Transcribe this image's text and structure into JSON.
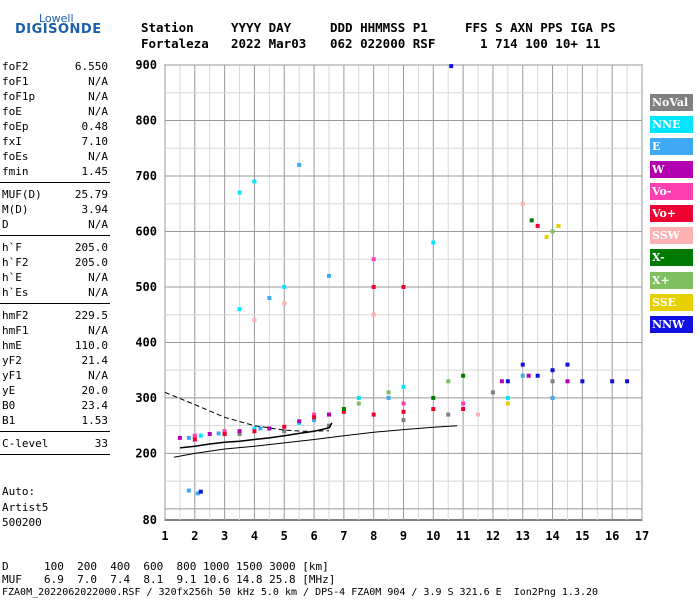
{
  "logo": {
    "top": "Lowell",
    "bottom": "DIGISONDE"
  },
  "header": {
    "labels": [
      "Station",
      "YYYY DAY",
      "DDD HHMMSS P1",
      "FFS S AXN PPS IGA PS"
    ],
    "values": [
      "Fortaleza",
      "2022 Mar03",
      "062 022000 RSF",
      "  1 714 100 10+ 11"
    ]
  },
  "parameters": [
    {
      "name": "foF2",
      "value": "6.550"
    },
    {
      "name": "foF1",
      "value": "N/A"
    },
    {
      "name": "foF1p",
      "value": "N/A"
    },
    {
      "name": "foE",
      "value": "N/A"
    },
    {
      "name": "foEp",
      "value": "0.48"
    },
    {
      "name": "fxI",
      "value": "7.10"
    },
    {
      "name": "foEs",
      "value": "N/A"
    },
    {
      "name": "fmin",
      "value": "1.45"
    },
    {
      "name": "MUF(D)",
      "value": "25.79"
    },
    {
      "name": "M(D)",
      "value": "3.94"
    },
    {
      "name": "D",
      "value": "N/A"
    },
    {
      "name": "h`F",
      "value": "205.0"
    },
    {
      "name": "h`F2",
      "value": "205.0"
    },
    {
      "name": "h`E",
      "value": "N/A"
    },
    {
      "name": "h`Es",
      "value": "N/A"
    },
    {
      "name": "hmF2",
      "value": "229.5"
    },
    {
      "name": "hmF1",
      "value": "N/A"
    },
    {
      "name": "hmE",
      "value": "110.0"
    },
    {
      "name": "yF2",
      "value": "21.4"
    },
    {
      "name": "yF1",
      "value": "N/A"
    },
    {
      "name": "yE",
      "value": "20.0"
    },
    {
      "name": "B0",
      "value": "23.4"
    },
    {
      "name": "B1",
      "value": "1.53"
    },
    {
      "name": "C-level",
      "value": "33"
    }
  ],
  "auto": {
    "line1": "Auto:",
    "line2": "Artist5",
    "line3": "500200"
  },
  "legend": [
    {
      "label": "NoVal",
      "color": "#808080"
    },
    {
      "label": "NNE",
      "color": "#00e6ff"
    },
    {
      "label": "E",
      "color": "#3fa9f5"
    },
    {
      "label": "W",
      "color": "#b000b0"
    },
    {
      "label": "Vo-",
      "color": "#ff3faf"
    },
    {
      "label": "Vo+",
      "color": "#ee0030"
    },
    {
      "label": "SSW",
      "color": "#ffb0b0"
    },
    {
      "label": "X-",
      "color": "#007a00"
    },
    {
      "label": "X+",
      "color": "#7fbf5f"
    },
    {
      "label": "SSE",
      "color": "#e6d000"
    },
    {
      "label": "NNW",
      "color": "#1010e0"
    }
  ],
  "chart_data": {
    "type": "scatter",
    "title": "",
    "xlabel": "",
    "ylabel": "",
    "xlim": [
      1,
      17
    ],
    "ylim": [
      80,
      900
    ],
    "x_ticks": [
      1,
      2,
      3,
      4,
      5,
      6,
      7,
      8,
      9,
      10,
      11,
      12,
      13,
      14,
      15,
      16,
      17
    ],
    "y_ticks": [
      80,
      200,
      300,
      400,
      500,
      600,
      700,
      800,
      900
    ],
    "grid": true,
    "series": [
      {
        "name": "NoVal",
        "points": [
          [
            2.0,
            230
          ],
          [
            3.5,
            235
          ],
          [
            5.0,
            240
          ],
          [
            6.5,
            250
          ],
          [
            9.0,
            260
          ],
          [
            10.5,
            270
          ],
          [
            12.0,
            310
          ],
          [
            14.0,
            330
          ]
        ]
      },
      {
        "name": "NNE",
        "points": [
          [
            2.2,
            232
          ],
          [
            3.0,
            238
          ],
          [
            4.0,
            245
          ],
          [
            5.5,
            255
          ],
          [
            7.5,
            300
          ],
          [
            3.5,
            460
          ],
          [
            5.0,
            500
          ],
          [
            4.0,
            690
          ],
          [
            3.5,
            670
          ],
          [
            9.0,
            320
          ],
          [
            10.0,
            580
          ],
          [
            12.5,
            300
          ]
        ]
      },
      {
        "name": "E",
        "points": [
          [
            1.8,
            228
          ],
          [
            2.8,
            236
          ],
          [
            4.2,
            245
          ],
          [
            6.0,
            260
          ],
          [
            8.5,
            300
          ],
          [
            4.5,
            480
          ],
          [
            6.5,
            520
          ],
          [
            5.5,
            720
          ],
          [
            2.1,
            128
          ],
          [
            1.8,
            133
          ],
          [
            13.0,
            340
          ],
          [
            14.0,
            300
          ]
        ]
      },
      {
        "name": "W",
        "points": [
          [
            1.5,
            228
          ],
          [
            2.5,
            235
          ],
          [
            3.5,
            240
          ],
          [
            4.5,
            245
          ],
          [
            5.5,
            258
          ],
          [
            6.5,
            270
          ],
          [
            12.3,
            330
          ],
          [
            13.2,
            340
          ],
          [
            14.5,
            330
          ]
        ]
      },
      {
        "name": "Vo-",
        "points": [
          [
            2.0,
            232
          ],
          [
            3.0,
            240
          ],
          [
            6.0,
            270
          ],
          [
            9.0,
            290
          ],
          [
            11.0,
            290
          ],
          [
            8.0,
            550
          ]
        ]
      },
      {
        "name": "Vo+",
        "points": [
          [
            2.0,
            225
          ],
          [
            3.0,
            235
          ],
          [
            4.0,
            240
          ],
          [
            5.0,
            248
          ],
          [
            6.0,
            265
          ],
          [
            7.0,
            275
          ],
          [
            8.0,
            270
          ],
          [
            9.0,
            275
          ],
          [
            10.0,
            280
          ],
          [
            11.0,
            280
          ],
          [
            9.0,
            500
          ],
          [
            8.0,
            500
          ],
          [
            13.5,
            610
          ]
        ]
      },
      {
        "name": "SSW",
        "points": [
          [
            4.0,
            440
          ],
          [
            5.0,
            470
          ],
          [
            8.0,
            450
          ],
          [
            11.5,
            270
          ],
          [
            13.0,
            650
          ]
        ]
      },
      {
        "name": "X-",
        "points": [
          [
            7.0,
            280
          ],
          [
            10.0,
            300
          ],
          [
            11.0,
            340
          ],
          [
            13.3,
            620
          ]
        ]
      },
      {
        "name": "X+",
        "points": [
          [
            7.5,
            290
          ],
          [
            8.5,
            310
          ],
          [
            10.5,
            330
          ],
          [
            14.0,
            600
          ]
        ]
      },
      {
        "name": "SSE",
        "points": [
          [
            12.5,
            290
          ],
          [
            14.2,
            610
          ],
          [
            13.8,
            590
          ]
        ]
      },
      {
        "name": "NNW",
        "points": [
          [
            12.5,
            330
          ],
          [
            13.0,
            360
          ],
          [
            13.5,
            340
          ],
          [
            14.0,
            350
          ],
          [
            14.5,
            360
          ],
          [
            15.0,
            330
          ],
          [
            16.0,
            330
          ],
          [
            16.5,
            330
          ],
          [
            10.6,
            898
          ],
          [
            2.2,
            131
          ]
        ]
      }
    ],
    "traces": {
      "dashed": {
        "x": [
          1.0,
          2.0,
          3.0,
          4.0,
          5.0,
          5.6,
          6.0,
          6.5
        ],
        "y": [
          310,
          288,
          265,
          250,
          242,
          240,
          240,
          241
        ]
      },
      "solid": {
        "x": [
          1.3,
          2.0,
          3.0,
          4.0,
          5.0,
          6.0,
          7.0,
          8.0,
          9.0,
          10.0,
          10.8
        ],
        "y": [
          193,
          200,
          208,
          213,
          219,
          225,
          232,
          238,
          243,
          247,
          250
        ]
      },
      "profile": {
        "x": [
          1.5,
          2.0,
          2.5,
          3.0,
          3.5,
          4.0,
          4.5,
          5.0,
          5.5,
          6.0,
          6.5,
          6.6
        ],
        "y": [
          210,
          213,
          217,
          220,
          222,
          225,
          228,
          232,
          236,
          240,
          246,
          255
        ]
      }
    }
  },
  "footer": {
    "d_label": "D",
    "d_values": "100  200  400  600  800 1000 1500 3000 [km]",
    "muf_label": "MUF",
    "muf_values": "6.9  7.0  7.4  8.1  9.1 10.6 14.8 25.8 [MHz]",
    "info": "FZA0M_2022062022000.RSF / 320fx256h 50 kHz 5.0 km / DPS-4 FZA0M 904 / 3.9 S 321.6 E  Ion2Png 1.3.20"
  }
}
